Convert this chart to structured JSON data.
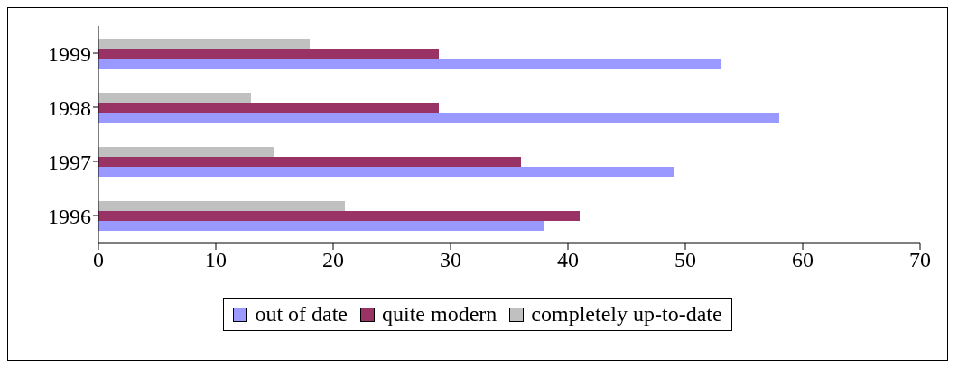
{
  "chart_data": {
    "type": "bar",
    "orientation": "horizontal",
    "categories": [
      "1999",
      "1998",
      "1997",
      "1996"
    ],
    "series": [
      {
        "name": "out of date",
        "color": "#9999ff",
        "values": [
          53,
          58,
          49,
          38
        ]
      },
      {
        "name": "quite modern",
        "color": "#993366",
        "values": [
          29,
          29,
          36,
          41
        ]
      },
      {
        "name": "completely up-to-date",
        "color": "#c0c0c0",
        "values": [
          18,
          13,
          15,
          21
        ]
      }
    ],
    "xlim": [
      0,
      70
    ],
    "xticks": [
      0,
      10,
      20,
      30,
      40,
      50,
      60,
      70
    ],
    "legend": "bottom"
  }
}
